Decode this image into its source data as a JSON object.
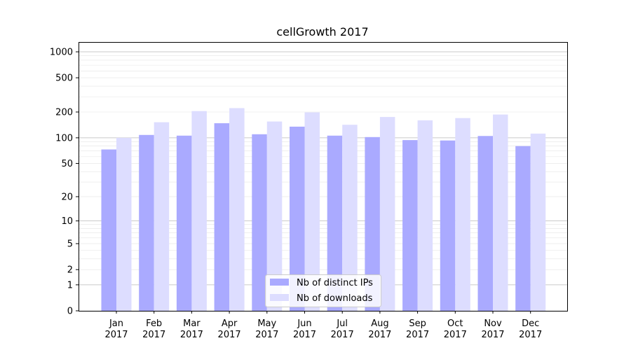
{
  "chart_data": {
    "type": "bar",
    "title": "cellGrowth 2017",
    "xlabel": "",
    "ylabel": "",
    "y_scale": "log(1+y)",
    "ylim": [
      0,
      1300
    ],
    "y_ticks": [
      0,
      1,
      2,
      5,
      10,
      20,
      50,
      100,
      200,
      500,
      1000
    ],
    "y_tick_labels": [
      "0",
      "1",
      "2",
      "5",
      "10",
      "20",
      "50",
      "100",
      "200",
      "500",
      "1000"
    ],
    "grid": true,
    "categories": [
      "Jan\n2017",
      "Feb\n2017",
      "Mar\n2017",
      "Apr\n2017",
      "May\n2017",
      "Jun\n2017",
      "Jul\n2017",
      "Aug\n2017",
      "Sep\n2017",
      "Oct\n2017",
      "Nov\n2017",
      "Dec\n2017"
    ],
    "category_lines": [
      [
        "Jan",
        "2017"
      ],
      [
        "Feb",
        "2017"
      ],
      [
        "Mar",
        "2017"
      ],
      [
        "Apr",
        "2017"
      ],
      [
        "May",
        "2017"
      ],
      [
        "Jun",
        "2017"
      ],
      [
        "Jul",
        "2017"
      ],
      [
        "Aug",
        "2017"
      ],
      [
        "Sep",
        "2017"
      ],
      [
        "Oct",
        "2017"
      ],
      [
        "Nov",
        "2017"
      ],
      [
        "Dec",
        "2017"
      ]
    ],
    "series": [
      {
        "name": "Nb of distinct IPs",
        "color": "#aaaaff",
        "values": [
          73,
          108,
          106,
          148,
          110,
          135,
          106,
          102,
          94,
          93,
          105,
          80
        ]
      },
      {
        "name": "Nb of downloads",
        "color": "#ddddff",
        "values": [
          100,
          152,
          205,
          222,
          155,
          198,
          142,
          175,
          160,
          170,
          187,
          112
        ]
      }
    ],
    "legend": {
      "position": "bottom-center"
    }
  }
}
